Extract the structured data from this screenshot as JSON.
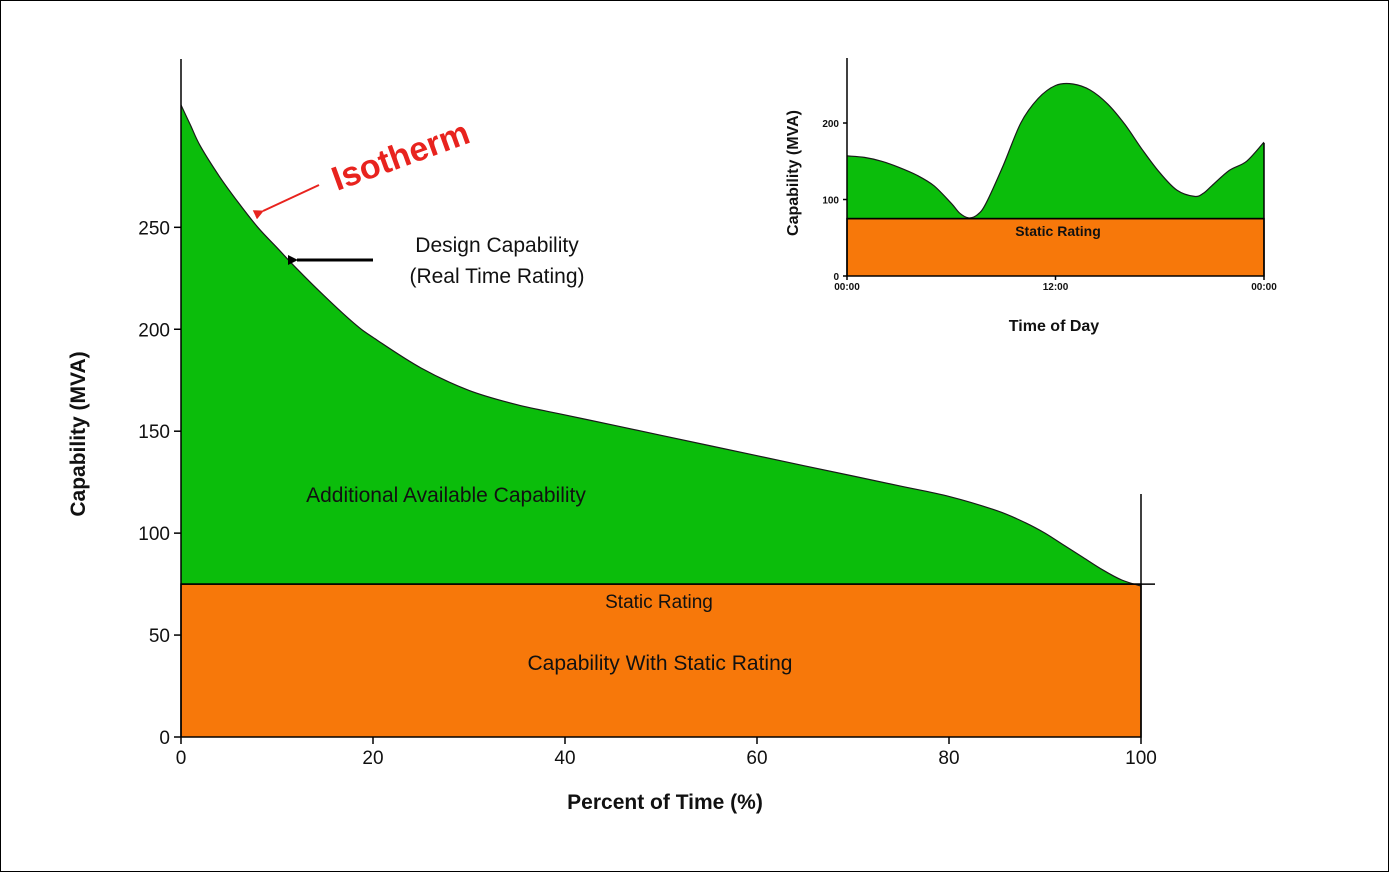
{
  "chart_data": [
    {
      "type": "area",
      "xlabel": "Percent of Time (%)",
      "ylabel": "Capability (MVA)",
      "xlim": [
        0,
        100
      ],
      "ylim": [
        0,
        310
      ],
      "x_ticks": [
        "0",
        "20",
        "40",
        "60",
        "80",
        "100"
      ],
      "y_ticks": [
        "0",
        "50",
        "100",
        "150",
        "200",
        "250"
      ],
      "grid": false,
      "legend": "none",
      "series": [
        {
          "name": "Design Capability (Real Time Rating)",
          "color": "#0bbd0b",
          "x": [
            0,
            1,
            2,
            4,
            6,
            8,
            10,
            12,
            15,
            18,
            20,
            25,
            30,
            35,
            40,
            45,
            50,
            55,
            60,
            65,
            70,
            75,
            80,
            85,
            88,
            90,
            92,
            94,
            96,
            98,
            100
          ],
          "y": [
            310,
            300,
            290,
            275,
            262,
            250,
            240,
            230,
            216,
            203,
            196,
            181,
            170,
            163,
            158,
            153,
            148,
            143,
            138,
            133,
            128,
            123,
            118,
            111,
            105,
            100,
            94,
            88,
            82,
            77,
            74
          ]
        },
        {
          "name": "Static Rating",
          "color": "#f7780a",
          "x": [
            0,
            100
          ],
          "y": [
            75,
            75
          ]
        }
      ],
      "annotations": {
        "design_line1": "Design Capability",
        "design_line2": "(Real Time Rating)",
        "isotherm": "Isotherm",
        "isotherm_color": "#e8231e",
        "additional": "Additional Available Capability",
        "static_rating": "Static Rating",
        "capability_static": "Capability With Static Rating"
      }
    },
    {
      "type": "area",
      "xlabel": "Time of Day",
      "ylabel": "Capability (MVA)",
      "xlim": [
        0,
        24
      ],
      "ylim": [
        0,
        285
      ],
      "x_ticks": [
        "00:00",
        "12:00",
        "00:00"
      ],
      "y_ticks": [
        "0",
        "100",
        "200"
      ],
      "grid": false,
      "legend": "none",
      "series": [
        {
          "name": "Real Time Rating",
          "color": "#0bbd0b",
          "x": [
            0,
            1,
            2,
            3,
            4,
            5,
            6,
            6.5,
            7,
            7.5,
            8,
            9,
            10,
            11,
            12,
            13,
            14,
            15,
            16,
            17,
            18,
            19,
            20,
            20.5,
            21,
            22,
            23,
            24
          ],
          "y": [
            157,
            155,
            150,
            142,
            132,
            118,
            95,
            82,
            76,
            80,
            95,
            145,
            200,
            232,
            249,
            251,
            243,
            225,
            198,
            165,
            135,
            112,
            104,
            108,
            118,
            138,
            150,
            175
          ]
        },
        {
          "name": "Static Rating",
          "color": "#f7780a",
          "x": [
            0,
            24
          ],
          "y": [
            75,
            75
          ]
        }
      ],
      "annotations": {
        "static_rating": "Static Rating"
      }
    }
  ]
}
